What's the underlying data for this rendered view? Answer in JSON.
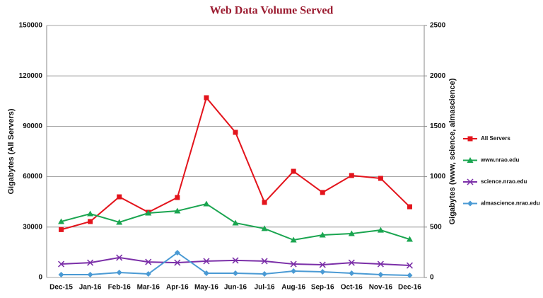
{
  "chart_data": {
    "type": "line",
    "title": "Web Data Volume Served",
    "ylabel": "Gigabytes (All Servers)",
    "y2label": "Gigabytes (www, science, almascience)",
    "categories": [
      "Dec-15",
      "Jan-16",
      "Feb-16",
      "Mar-16",
      "Apr-16",
      "May-16",
      "Jun-16",
      "Jul-16",
      "Aug-16",
      "Sep-16",
      "Oct-16",
      "Nov-16",
      "Dec-16"
    ],
    "ylim": [
      0,
      150000
    ],
    "yticks": [
      0,
      30000,
      60000,
      90000,
      120000,
      150000
    ],
    "y2lim": [
      0,
      2500
    ],
    "y2ticks": [
      0,
      500,
      1000,
      1500,
      2000,
      2500
    ],
    "grid": true,
    "legend": "right",
    "series": [
      {
        "name": "All Servers",
        "color": "#e3141c",
        "marker": "square",
        "values": [
          28500,
          33300,
          48000,
          38800,
          47600,
          107000,
          86400,
          44700,
          63200,
          50600,
          60700,
          59000,
          42100
        ]
      },
      {
        "name": "www.nrao.edu",
        "color": "#1aa550",
        "marker": "triangle",
        "axis": "y2",
        "values": [
          555,
          632,
          548,
          639,
          660,
          730,
          541,
          485,
          372,
          421,
          435,
          470,
          379
        ]
      },
      {
        "name": "science.nrao.edu",
        "color": "#7b2fa8",
        "marker": "x",
        "axis": "y2",
        "values": [
          133,
          147,
          197,
          154,
          147,
          162,
          169,
          162,
          133,
          126,
          147,
          133,
          119
        ]
      },
      {
        "name": "almascience.nrao.edu",
        "color": "#4a9ad4",
        "marker": "diamond",
        "axis": "y2",
        "values": [
          28,
          28,
          49,
          35,
          246,
          42,
          42,
          35,
          63,
          56,
          42,
          28,
          21
        ]
      }
    ]
  }
}
